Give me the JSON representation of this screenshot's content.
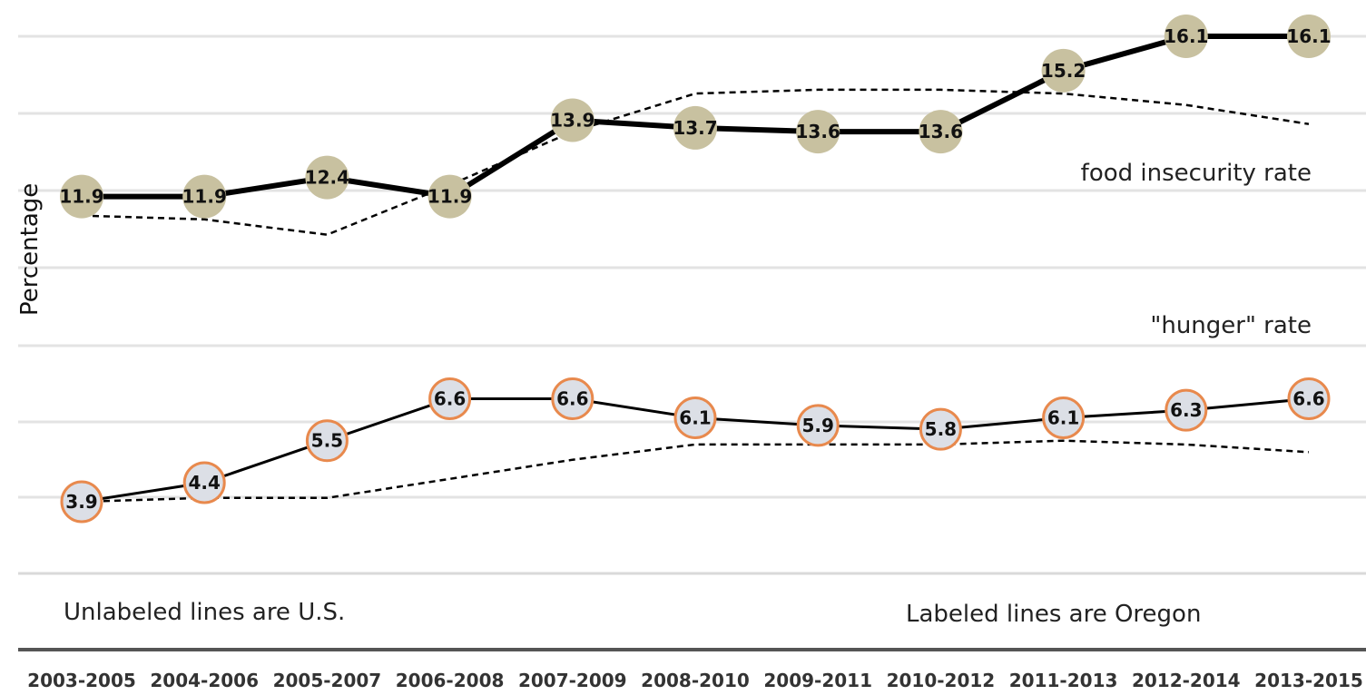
{
  "chart_data": {
    "type": "line",
    "ylabel": "Percentage",
    "categories": [
      "2003-2005",
      "2004-2006",
      "2005-2007",
      "2006-2008",
      "2007-2009",
      "2008-2010",
      "2009-2011",
      "2010-2012",
      "2011-2013",
      "2012-2014",
      "2013-2015"
    ],
    "series": [
      {
        "name": "food insecurity rate",
        "region": "Oregon",
        "values": [
          11.9,
          11.9,
          12.4,
          11.9,
          13.9,
          13.7,
          13.6,
          13.6,
          15.2,
          16.1,
          16.1
        ],
        "labeled": true,
        "line_color": "#000000",
        "marker_color": "#c8c1a0"
      },
      {
        "name": "",
        "region": "U.S.",
        "values": [
          11.4,
          11.3,
          10.9,
          12.2,
          13.6,
          14.6,
          14.7,
          14.7,
          14.6,
          14.3,
          13.8
        ],
        "labeled": false,
        "dashed": true,
        "line_color": "#000000"
      },
      {
        "name": "\"hunger\" rate",
        "region": "Oregon",
        "values": [
          3.9,
          4.4,
          5.5,
          6.6,
          6.6,
          6.1,
          5.9,
          5.8,
          6.1,
          6.3,
          6.6
        ],
        "labeled": true,
        "line_color": "#000000",
        "marker_color": "#dcdfe6",
        "marker_border": "#e8894d"
      },
      {
        "name": "",
        "region": "U.S.",
        "values": [
          3.9,
          4.0,
          4.0,
          4.5,
          5.0,
          5.4,
          5.4,
          5.4,
          5.5,
          5.4,
          5.2
        ],
        "labeled": false,
        "dashed": true,
        "line_color": "#000000"
      }
    ],
    "notes": {
      "left": "Unlabeled lines are U.S.",
      "right": "Labeled lines are Oregon"
    },
    "grid": true,
    "legend": "inline labels on the right"
  }
}
